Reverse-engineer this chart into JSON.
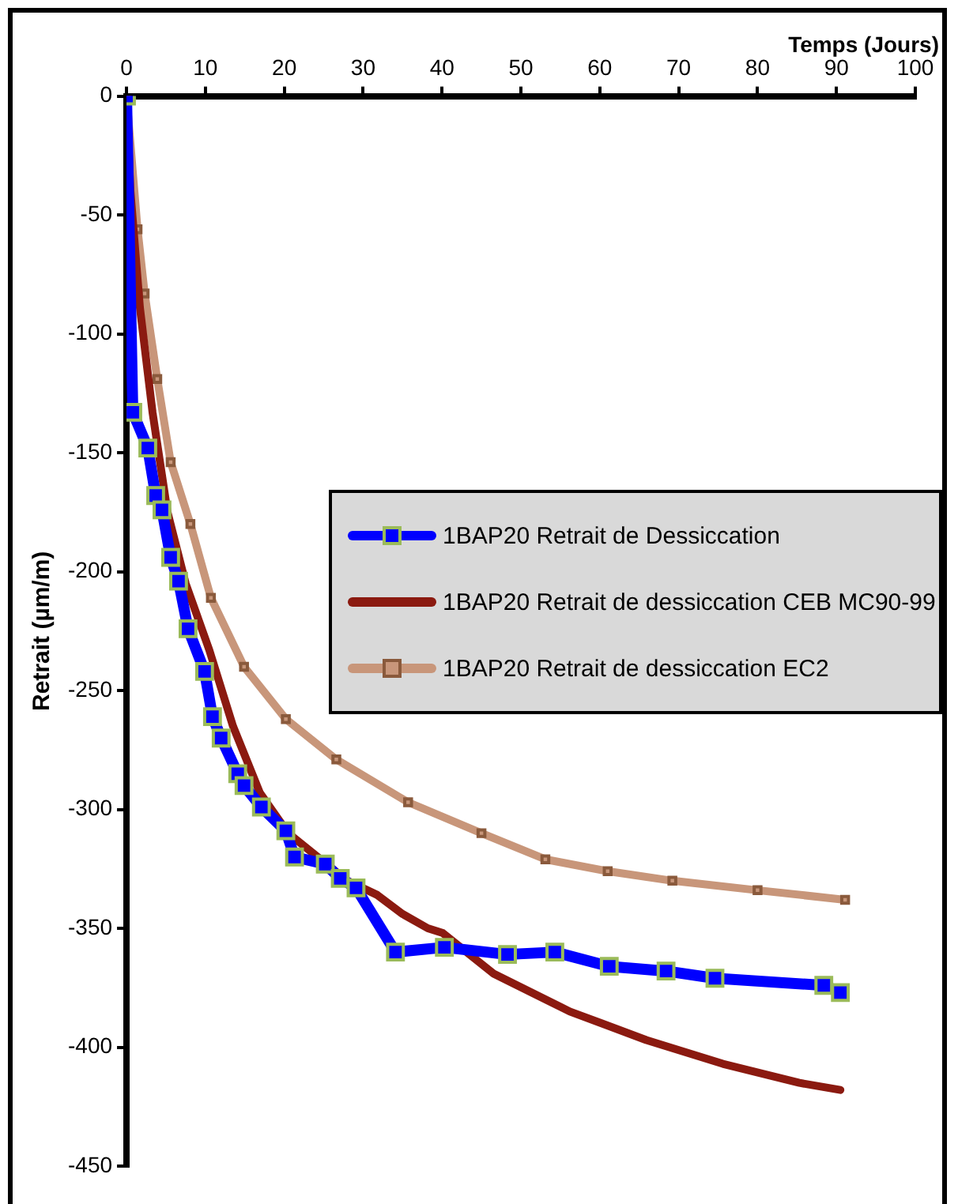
{
  "chart_data": {
    "type": "line",
    "xlabel": "Temps (Jours)",
    "ylabel": "Retrait (µm/m)",
    "xlim": [
      0,
      100
    ],
    "xticks": [
      0,
      10,
      20,
      30,
      40,
      50,
      60,
      70,
      80,
      90,
      100
    ],
    "ylim": [
      -450,
      0
    ],
    "yticks": [
      -450,
      -400,
      -350,
      -300,
      -250,
      -200,
      -150,
      -100,
      -50,
      0
    ],
    "grid": false,
    "legend": "right",
    "line_style": "solid",
    "series": [
      {
        "name": "1BAP20  Retrait de Dessiccation",
        "color": "#0000ff",
        "marker": "square",
        "x": [
          0,
          0.8,
          2.7,
          3.7,
          4.5,
          5.6,
          6.6,
          7.8,
          9.9,
          10.9,
          12,
          14.1,
          14.9,
          17.1,
          20.2,
          21.3,
          25.2,
          27.1,
          29.1,
          34.1,
          40.3,
          48.3,
          54.3,
          61.2,
          68.4,
          74.6,
          88.4,
          90.5
        ],
        "values": [
          0,
          -133,
          -148,
          -168,
          -174,
          -194,
          -204,
          -224,
          -242,
          -261,
          -270,
          -285,
          -290,
          -299,
          -309,
          -320,
          -323,
          -329,
          -333,
          -360,
          -358,
          -361,
          -360,
          -366,
          -368,
          -371,
          -374,
          -377
        ]
      },
      {
        "name": "1BAP20 Retrait de dessiccation CEB MC90-99",
        "color": "#8b1a10",
        "marker": "none",
        "x": [
          0,
          0.5,
          1.7,
          3.3,
          5.2,
          7.5,
          10.5,
          13.5,
          16.9,
          20.5,
          24.6,
          28,
          31.8,
          35,
          38.2,
          40.1,
          46.5,
          56.2,
          65.9,
          75.6,
          85.3,
          90.5
        ],
        "values": [
          0,
          -40,
          -89,
          -133,
          -175,
          -205,
          -233,
          -265,
          -293,
          -310,
          -321,
          -330,
          -336,
          -344,
          -350,
          -352,
          -369,
          -385,
          -397,
          -407,
          -415,
          -418
        ]
      },
      {
        "name": "1BAP20 Retrait de dessiccation EC2",
        "color": "#c8967a",
        "marker": "square",
        "x": [
          0,
          1.4,
          2.3,
          3.9,
          5.6,
          8.1,
          10.7,
          14.9,
          20.2,
          26.6,
          35.7,
          45,
          53.1,
          61,
          69.2,
          80,
          91.1
        ],
        "values": [
          0,
          -56,
          -83,
          -119,
          -154,
          -180,
          -211,
          -240,
          -262,
          -279,
          -297,
          -310,
          -321,
          -326,
          -330,
          -334,
          -338
        ]
      }
    ]
  }
}
